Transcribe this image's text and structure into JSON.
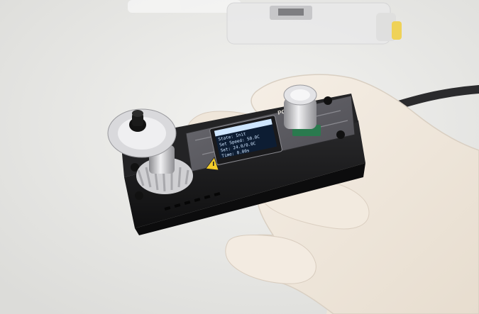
{
  "photo": {
    "subject": "handheld-device",
    "colors": {
      "background": "#ececea",
      "glove": "#f1e8de",
      "enclosure": "#1b1b1d",
      "pcb": "#5b5a5f",
      "oled_bg": "#0d1d33",
      "oled_text": "#cfe6ff",
      "knob": "#c9c9cc",
      "cable": "#2b2b2d",
      "accent": "#f2cc2a"
    }
  },
  "display": {
    "title": "",
    "lines": [
      "State: Init",
      "Set Speed: 50.0C",
      "Set: 24.0/0.0C",
      "Time: 0.00s"
    ]
  },
  "board": {
    "label": "PC"
  },
  "icons": {
    "warning": "warning-triangle-icon"
  }
}
